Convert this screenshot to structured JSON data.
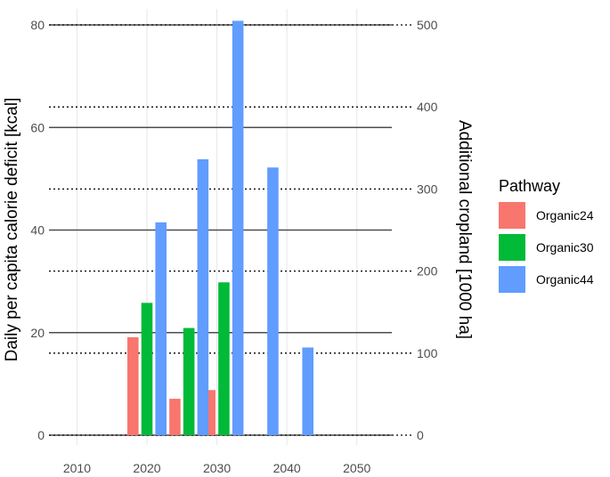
{
  "chart_data": {
    "type": "bar",
    "x_ticks": [
      2010,
      2020,
      2030,
      2040,
      2050
    ],
    "xlim": [
      2006,
      2055
    ],
    "ylim": [
      0,
      80
    ],
    "y_ticks": [
      0,
      20,
      40,
      60,
      80
    ],
    "ylabel": "Daily per capita calorie deficit [kcal]",
    "y2label": "Additional cropland [1000 ha]",
    "y2lim": [
      0,
      500
    ],
    "y2_ticks": [
      0,
      100,
      200,
      300,
      400,
      500
    ],
    "legend": {
      "title": "Pathway",
      "placement": "right"
    },
    "grid": true,
    "bar_width_years": 1.6,
    "series": [
      {
        "name": "Organic24",
        "color": "#F8766D",
        "points": [
          {
            "x": 2018,
            "y": 19.1
          },
          {
            "x": 2024,
            "y": 7.1
          },
          {
            "x": 2029,
            "y": 8.8
          }
        ]
      },
      {
        "name": "Organic30",
        "color": "#00BA38",
        "points": [
          {
            "x": 2020,
            "y": 25.8
          },
          {
            "x": 2026,
            "y": 20.9
          },
          {
            "x": 2031,
            "y": 29.8
          }
        ]
      },
      {
        "name": "Organic44",
        "color": "#619CFF",
        "points": [
          {
            "x": 2022,
            "y": 41.5
          },
          {
            "x": 2028,
            "y": 53.8
          },
          {
            "x": 2033,
            "y": 80.8
          },
          {
            "x": 2038,
            "y": 52.2
          },
          {
            "x": 2043,
            "y": 17.1
          }
        ]
      }
    ]
  }
}
